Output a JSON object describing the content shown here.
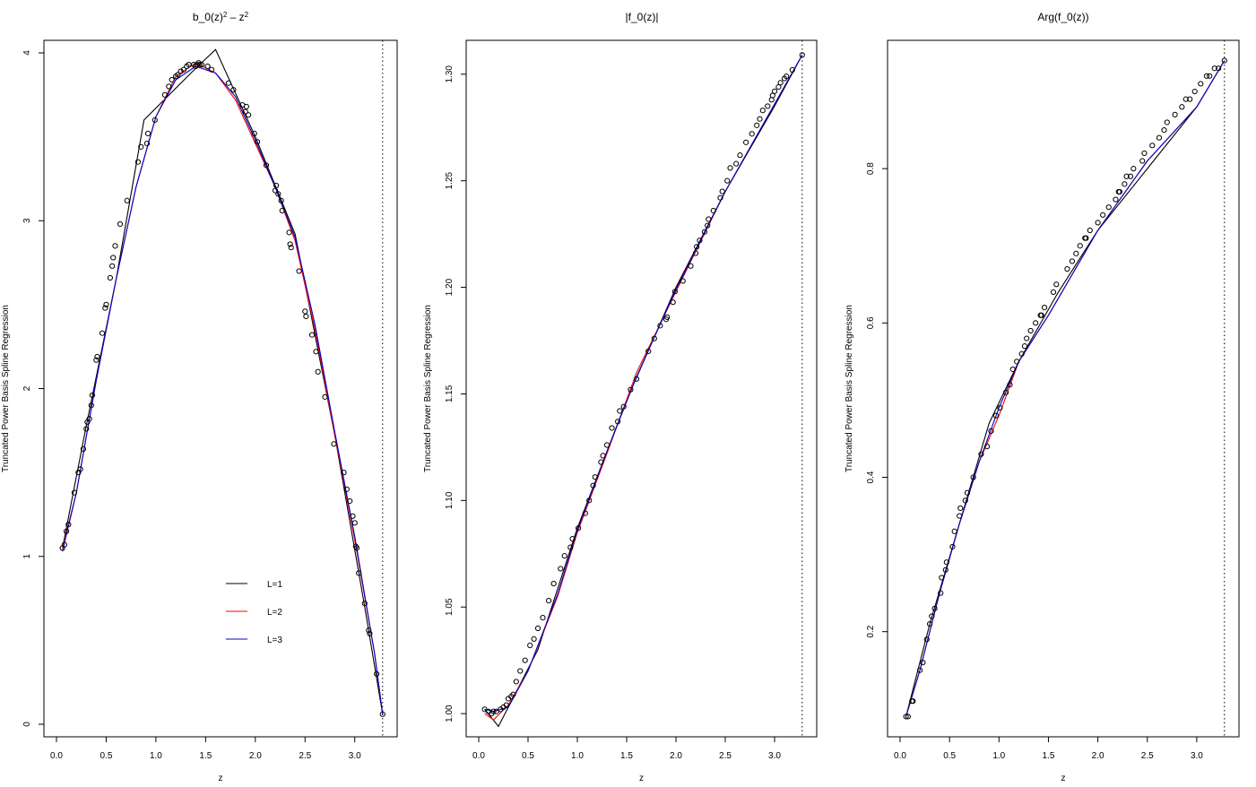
{
  "figure": {
    "panels": [
      {
        "title_html": "b_0(z)<tspan baseline-shift='super' font-size='8'>2</tspan> – z<tspan baseline-shift='super' font-size='8'>2</tspan>",
        "title_text": "b_0(z)2 - z2"
      },
      {
        "title_text": "|f_0(z)|"
      },
      {
        "title_text": "Arg(f_0(z))"
      }
    ]
  },
  "chart_data": [
    {
      "type": "line",
      "title": "b_0(z)^2 - z^2",
      "xlabel": "z",
      "ylabel": "Truncated Power Basis Spline Regression",
      "xlim": [
        0.0,
        3.3
      ],
      "ylim": [
        0.0,
        4.0
      ],
      "xticks": [
        "0.0",
        "0.5",
        "1.0",
        "1.5",
        "2.0",
        "2.5",
        "3.0"
      ],
      "yticks": [
        "0",
        "1",
        "2",
        "3",
        "4"
      ],
      "vline_x": 3.28,
      "legend": {
        "position": "inside-bottom-center",
        "entries": [
          {
            "label": "L=1",
            "color": "#000000"
          },
          {
            "label": "L=2",
            "color": "#ff0000"
          },
          {
            "label": "L=3",
            "color": "#0000cc"
          }
        ]
      },
      "series": [
        {
          "name": "L=1",
          "color": "#000000",
          "x": [
            0.06,
            0.3,
            0.6,
            0.88,
            1.42,
            1.6,
            2.0,
            2.4,
            2.8,
            3.1,
            3.28
          ],
          "y": [
            1.05,
            1.78,
            2.65,
            3.6,
            3.92,
            4.02,
            3.5,
            2.92,
            1.72,
            0.7,
            0.06
          ]
        },
        {
          "name": "L=2",
          "color": "#ff0000",
          "x": [
            0.06,
            0.2,
            0.4,
            0.6,
            0.8,
            1.0,
            1.2,
            1.4,
            1.6,
            1.8,
            2.0,
            2.2,
            2.4,
            2.6,
            2.8,
            3.0,
            3.2,
            3.28
          ],
          "y": [
            1.05,
            1.38,
            2.05,
            2.65,
            3.2,
            3.62,
            3.86,
            3.94,
            3.88,
            3.72,
            3.46,
            3.2,
            2.88,
            2.35,
            1.72,
            1.1,
            0.42,
            0.06
          ]
        },
        {
          "name": "L=3",
          "color": "#0000cc",
          "x": [
            0.06,
            0.2,
            0.4,
            0.6,
            0.8,
            1.0,
            1.2,
            1.4,
            1.6,
            1.8,
            2.0,
            2.2,
            2.4,
            2.6,
            2.8,
            3.0,
            3.2,
            3.28
          ],
          "y": [
            1.03,
            1.38,
            2.05,
            2.65,
            3.2,
            3.62,
            3.84,
            3.92,
            3.88,
            3.74,
            3.48,
            3.2,
            2.9,
            2.38,
            1.74,
            1.12,
            0.42,
            0.06
          ]
        },
        {
          "name": "observations",
          "color": "#000000",
          "marker": "circle",
          "x": [
            0.06,
            0.08,
            0.1,
            0.12,
            0.18,
            0.22,
            0.24,
            0.27,
            0.3,
            0.31,
            0.33,
            0.35,
            0.36,
            0.4,
            0.41,
            0.46,
            0.49,
            0.5,
            0.54,
            0.56,
            0.57,
            0.59,
            0.64,
            0.71,
            0.82,
            0.85,
            0.91,
            0.92,
            0.99,
            1.09,
            1.13,
            1.16,
            1.2,
            1.22,
            1.25,
            1.28,
            1.31,
            1.33,
            1.38,
            1.4,
            1.41,
            1.43,
            1.44,
            1.46,
            1.52,
            1.56,
            1.73,
            1.78,
            1.87,
            1.9,
            1.91,
            1.93,
            1.99,
            2.02,
            2.11,
            2.2,
            2.21,
            2.23,
            2.26,
            2.27,
            2.34,
            2.35,
            2.36,
            2.44,
            2.5,
            2.51,
            2.57,
            2.61,
            2.63,
            2.7,
            2.79,
            2.89,
            2.92,
            2.95,
            2.98,
            3.0,
            3.01,
            3.02,
            3.04,
            3.1,
            3.14,
            3.15,
            3.22,
            3.28
          ],
          "y": [
            1.05,
            1.07,
            1.15,
            1.19,
            1.38,
            1.5,
            1.52,
            1.64,
            1.76,
            1.8,
            1.82,
            1.9,
            1.96,
            2.17,
            2.19,
            2.33,
            2.48,
            2.5,
            2.66,
            2.73,
            2.78,
            2.85,
            2.98,
            3.12,
            3.35,
            3.44,
            3.46,
            3.52,
            3.6,
            3.75,
            3.8,
            3.84,
            3.86,
            3.87,
            3.89,
            3.9,
            3.92,
            3.93,
            3.93,
            3.92,
            3.93,
            3.94,
            3.93,
            3.93,
            3.92,
            3.9,
            3.82,
            3.78,
            3.69,
            3.65,
            3.68,
            3.63,
            3.52,
            3.47,
            3.33,
            3.18,
            3.21,
            3.16,
            3.12,
            3.06,
            2.93,
            2.86,
            2.84,
            2.7,
            2.46,
            2.43,
            2.32,
            2.22,
            2.1,
            1.95,
            1.67,
            1.5,
            1.4,
            1.33,
            1.24,
            1.2,
            1.06,
            1.05,
            0.9,
            0.72,
            0.56,
            0.54,
            0.3,
            0.06
          ]
        }
      ]
    },
    {
      "type": "line",
      "title": "|f_0(z)|",
      "xlabel": "z",
      "ylabel": "Truncated Power Basis Spline Regression",
      "xlim": [
        0.0,
        3.3
      ],
      "ylim": [
        0.995,
        1.31
      ],
      "xticks": [
        "0.0",
        "0.5",
        "1.0",
        "1.5",
        "2.0",
        "2.5",
        "3.0"
      ],
      "yticks": [
        "1.00",
        "1.05",
        "1.10",
        "1.15",
        "1.20",
        "1.25",
        "1.30"
      ],
      "vline_x": 3.28,
      "series": [
        {
          "name": "L=1",
          "color": "#000000",
          "x": [
            0.06,
            0.2,
            0.6,
            1.0,
            1.5,
            2.0,
            2.5,
            3.0,
            3.28
          ],
          "y": [
            1.002,
            0.994,
            1.03,
            1.087,
            1.147,
            1.2,
            1.245,
            1.285,
            1.309
          ]
        },
        {
          "name": "L=2",
          "color": "#ff0000",
          "x": [
            0.06,
            0.15,
            0.3,
            0.5,
            0.8,
            1.0,
            1.3,
            1.6,
            2.0,
            2.5,
            3.0,
            3.28
          ],
          "y": [
            1.0,
            0.997,
            1.004,
            1.02,
            1.055,
            1.085,
            1.122,
            1.16,
            1.198,
            1.245,
            1.286,
            1.309
          ]
        },
        {
          "name": "L=3",
          "color": "#0000cc",
          "x": [
            0.06,
            0.15,
            0.3,
            0.5,
            0.8,
            1.0,
            1.3,
            1.6,
            2.0,
            2.5,
            3.0,
            3.28
          ],
          "y": [
            1.002,
            1.001,
            1.003,
            1.02,
            1.056,
            1.086,
            1.123,
            1.158,
            1.199,
            1.245,
            1.286,
            1.309
          ]
        },
        {
          "name": "observations",
          "color": "#000000",
          "marker": "circle",
          "x": [
            0.06,
            0.1,
            0.13,
            0.15,
            0.18,
            0.22,
            0.25,
            0.28,
            0.3,
            0.33,
            0.35,
            0.38,
            0.42,
            0.47,
            0.52,
            0.56,
            0.6,
            0.65,
            0.71,
            0.76,
            0.83,
            0.87,
            0.93,
            0.95,
            1.01,
            1.08,
            1.12,
            1.16,
            1.18,
            1.24,
            1.26,
            1.3,
            1.35,
            1.41,
            1.43,
            1.47,
            1.54,
            1.6,
            1.72,
            1.78,
            1.84,
            1.9,
            1.91,
            1.97,
            1.99,
            2.07,
            2.15,
            2.2,
            2.21,
            2.24,
            2.29,
            2.32,
            2.33,
            2.38,
            2.45,
            2.47,
            2.52,
            2.55,
            2.61,
            2.65,
            2.71,
            2.77,
            2.82,
            2.85,
            2.88,
            2.93,
            2.97,
            2.98,
            3.0,
            3.04,
            3.06,
            3.1,
            3.12,
            3.18,
            3.28
          ],
          "y": [
            1.002,
            1.001,
            1.0,
            1.001,
            1.001,
            1.002,
            1.003,
            1.004,
            1.007,
            1.008,
            1.009,
            1.015,
            1.02,
            1.025,
            1.032,
            1.035,
            1.04,
            1.045,
            1.053,
            1.061,
            1.068,
            1.074,
            1.078,
            1.082,
            1.087,
            1.094,
            1.1,
            1.107,
            1.111,
            1.118,
            1.121,
            1.126,
            1.134,
            1.137,
            1.142,
            1.144,
            1.152,
            1.157,
            1.17,
            1.176,
            1.182,
            1.185,
            1.186,
            1.193,
            1.198,
            1.203,
            1.21,
            1.216,
            1.219,
            1.222,
            1.226,
            1.229,
            1.232,
            1.236,
            1.242,
            1.245,
            1.25,
            1.256,
            1.258,
            1.262,
            1.268,
            1.272,
            1.276,
            1.279,
            1.283,
            1.285,
            1.288,
            1.29,
            1.292,
            1.294,
            1.296,
            1.298,
            1.299,
            1.302,
            1.309
          ]
        }
      ]
    },
    {
      "type": "line",
      "title": "Arg(f_0(z))",
      "xlabel": "z",
      "ylabel": "Truncated Power Basis Spline Regression",
      "xlim": [
        0.0,
        3.3
      ],
      "ylim": [
        0.08,
        0.95
      ],
      "xticks": [
        "0.0",
        "0.5",
        "1.0",
        "1.5",
        "2.0",
        "2.5",
        "3.0"
      ],
      "yticks": [
        "0.2",
        "0.4",
        "0.6",
        "0.8"
      ],
      "vline_x": 3.28,
      "series": [
        {
          "name": "L=1",
          "color": "#000000",
          "x": [
            0.06,
            0.3,
            0.6,
            0.9,
            1.2,
            1.6,
            2.0,
            2.5,
            3.0,
            3.28
          ],
          "y": [
            0.09,
            0.21,
            0.34,
            0.47,
            0.55,
            0.64,
            0.72,
            0.8,
            0.88,
            0.94
          ]
        },
        {
          "name": "L=2",
          "color": "#ff0000",
          "x": [
            0.06,
            0.2,
            0.4,
            0.6,
            0.8,
            1.0,
            1.2,
            1.5,
            2.0,
            2.5,
            3.0,
            3.28
          ],
          "y": [
            0.09,
            0.15,
            0.25,
            0.34,
            0.42,
            0.48,
            0.55,
            0.61,
            0.72,
            0.81,
            0.88,
            0.94
          ]
        },
        {
          "name": "L=3",
          "color": "#0000cc",
          "x": [
            0.06,
            0.2,
            0.4,
            0.6,
            0.8,
            1.0,
            1.2,
            1.5,
            2.0,
            2.5,
            3.0,
            3.28
          ],
          "y": [
            0.09,
            0.15,
            0.25,
            0.34,
            0.42,
            0.49,
            0.55,
            0.61,
            0.72,
            0.81,
            0.88,
            0.94
          ]
        },
        {
          "name": "observations",
          "color": "#000000",
          "marker": "circle",
          "x": [
            0.06,
            0.08,
            0.12,
            0.13,
            0.2,
            0.23,
            0.27,
            0.3,
            0.32,
            0.35,
            0.41,
            0.42,
            0.46,
            0.47,
            0.53,
            0.55,
            0.6,
            0.61,
            0.66,
            0.68,
            0.74,
            0.82,
            0.88,
            0.92,
            0.97,
            1.01,
            1.07,
            1.11,
            1.14,
            1.18,
            1.23,
            1.26,
            1.28,
            1.32,
            1.37,
            1.42,
            1.43,
            1.46,
            1.55,
            1.58,
            1.69,
            1.74,
            1.78,
            1.82,
            1.87,
            1.88,
            1.92,
            2.0,
            2.05,
            2.11,
            2.18,
            2.21,
            2.22,
            2.27,
            2.29,
            2.33,
            2.36,
            2.45,
            2.47,
            2.55,
            2.62,
            2.67,
            2.7,
            2.78,
            2.85,
            2.89,
            2.93,
            2.98,
            3.04,
            3.1,
            3.13,
            3.18,
            3.22,
            3.28
          ],
          "y": [
            0.09,
            0.09,
            0.11,
            0.11,
            0.15,
            0.16,
            0.19,
            0.21,
            0.22,
            0.23,
            0.25,
            0.27,
            0.28,
            0.29,
            0.31,
            0.33,
            0.35,
            0.36,
            0.37,
            0.38,
            0.4,
            0.43,
            0.44,
            0.46,
            0.48,
            0.49,
            0.51,
            0.52,
            0.54,
            0.55,
            0.56,
            0.57,
            0.58,
            0.59,
            0.6,
            0.61,
            0.61,
            0.62,
            0.64,
            0.65,
            0.67,
            0.68,
            0.69,
            0.7,
            0.71,
            0.71,
            0.72,
            0.73,
            0.74,
            0.75,
            0.76,
            0.77,
            0.77,
            0.78,
            0.79,
            0.79,
            0.8,
            0.81,
            0.82,
            0.83,
            0.84,
            0.85,
            0.86,
            0.87,
            0.88,
            0.89,
            0.89,
            0.9,
            0.91,
            0.92,
            0.92,
            0.93,
            0.93,
            0.94
          ]
        }
      ]
    }
  ]
}
